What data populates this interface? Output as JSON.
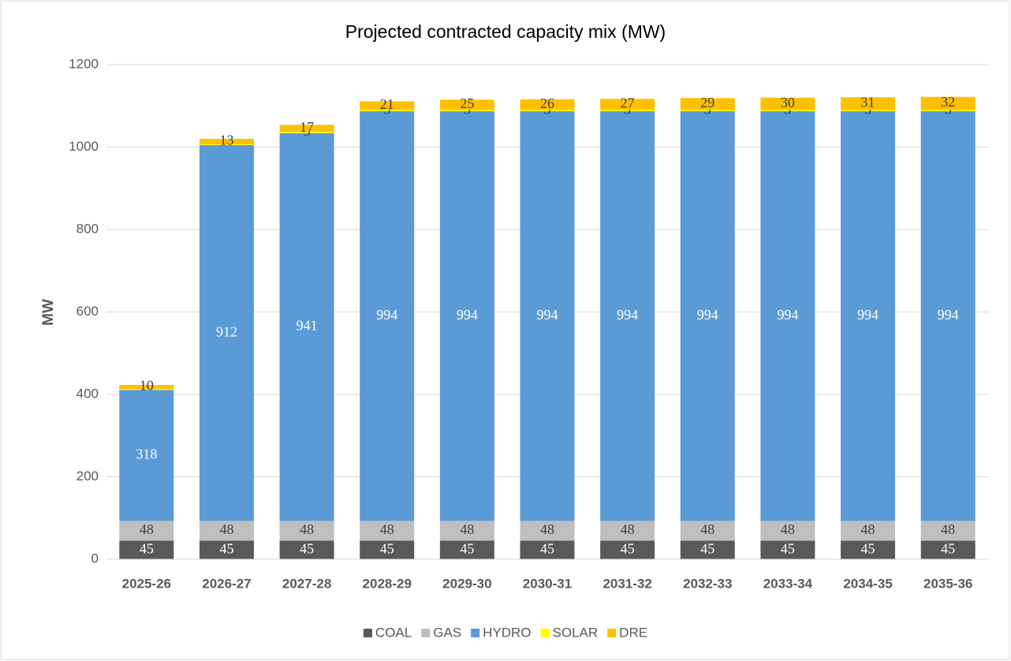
{
  "chart_data": {
    "type": "stacked_bar",
    "title": "Projected contracted capacity mix (MW)",
    "y_label": "MW",
    "categories": [
      "2025-26",
      "2026-27",
      "2027-28",
      "2028-29",
      "2029-30",
      "2030-31",
      "2031-32",
      "2032-33",
      "2033-34",
      "2034-35",
      "2035-36"
    ],
    "series": [
      {
        "name": "COAL",
        "color": "#595959",
        "label_color": "#ffffff",
        "values": [
          45,
          45,
          45,
          45,
          45,
          45,
          45,
          45,
          45,
          45,
          45
        ]
      },
      {
        "name": "GAS",
        "color": "#bfbfbf",
        "label_color": "#404040",
        "values": [
          48,
          48,
          48,
          48,
          48,
          48,
          48,
          48,
          48,
          48,
          48
        ]
      },
      {
        "name": "HYDRO",
        "color": "#5b9bd5",
        "label_color": "#ffffff",
        "values": [
          318,
          912,
          941,
          994,
          994,
          994,
          994,
          994,
          994,
          994,
          994
        ]
      },
      {
        "name": "SOLAR",
        "color": "#ffff00",
        "label_color": "#404040",
        "values": [
          2,
          2,
          3,
          3,
          3,
          3,
          3,
          3,
          3,
          3,
          3
        ],
        "value_labels": [
          null,
          null,
          "3",
          "3",
          "3",
          "3",
          "3",
          "3",
          "3",
          "3",
          "3"
        ]
      },
      {
        "name": "DRE",
        "color": "#ffc000",
        "label_color": "#404040",
        "values": [
          10,
          13,
          17,
          21,
          25,
          26,
          27,
          29,
          30,
          31,
          32
        ]
      }
    ],
    "ylim": [
      0,
      1200
    ],
    "yticks": [
      0,
      200,
      400,
      600,
      800,
      1000,
      1200
    ],
    "grid": true,
    "legend": "bottom"
  }
}
